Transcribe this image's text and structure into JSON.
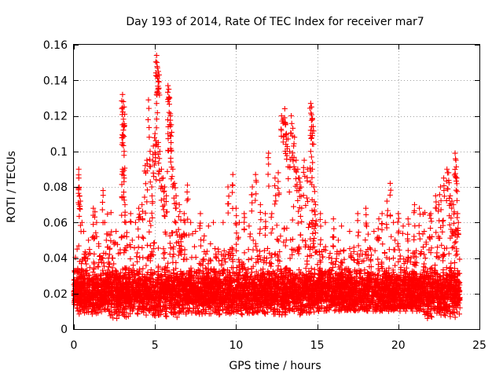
{
  "chart_data": {
    "type": "scatter",
    "title": "Day 193 of 2014, Rate Of TEC Index for receiver mar7",
    "xlabel": "GPS time / hours",
    "ylabel": "ROTI / TECUs",
    "xlim": [
      0,
      25
    ],
    "ylim": [
      0,
      0.16
    ],
    "xticks": [
      0,
      5,
      10,
      15,
      20,
      25
    ],
    "xtick_labels": [
      "0",
      "5",
      "10",
      "15",
      "20",
      "25"
    ],
    "yticks": [
      0,
      0.02,
      0.04,
      0.06,
      0.08,
      0.1,
      0.12,
      0.14,
      0.16
    ],
    "ytick_labels": [
      "0",
      "0.02",
      "0.04",
      "0.06",
      "0.08",
      "0.1",
      "0.12",
      "0.14",
      "0.16"
    ],
    "grid": true,
    "marker": "+",
    "color": "#ff0000",
    "series": [
      {
        "name": "ROTI",
        "points": [
          [
            0.1,
            0.018
          ],
          [
            0.2,
            0.045
          ],
          [
            0.3,
            0.09
          ],
          [
            0.3,
            0.085
          ],
          [
            0.35,
            0.075
          ],
          [
            0.4,
            0.072
          ],
          [
            0.5,
            0.06
          ],
          [
            0.6,
            0.055
          ],
          [
            0.7,
            0.04
          ],
          [
            0.8,
            0.03
          ],
          [
            0.9,
            0.05
          ],
          [
            1.0,
            0.025
          ],
          [
            1.2,
            0.068
          ],
          [
            1.3,
            0.066
          ],
          [
            1.4,
            0.06
          ],
          [
            1.5,
            0.035
          ],
          [
            1.8,
            0.078
          ],
          [
            1.9,
            0.06
          ],
          [
            2.0,
            0.05
          ],
          [
            2.2,
            0.045
          ],
          [
            2.4,
            0.04
          ],
          [
            2.6,
            0.055
          ],
          [
            3.0,
            0.132
          ],
          [
            3.05,
            0.128
          ],
          [
            3.1,
            0.125
          ],
          [
            3.0,
            0.115
          ],
          [
            3.05,
            0.112
          ],
          [
            3.1,
            0.1
          ],
          [
            3.0,
            0.09
          ],
          [
            3.1,
            0.085
          ],
          [
            3.15,
            0.07
          ],
          [
            3.2,
            0.06
          ],
          [
            3.5,
            0.065
          ],
          [
            3.6,
            0.05
          ],
          [
            3.8,
            0.06
          ],
          [
            4.0,
            0.068
          ],
          [
            4.2,
            0.07
          ],
          [
            4.4,
            0.092
          ],
          [
            4.5,
            0.095
          ],
          [
            4.6,
            0.129
          ],
          [
            4.7,
            0.1
          ],
          [
            4.8,
            0.08
          ],
          [
            4.9,
            0.103
          ],
          [
            5.0,
            0.11
          ],
          [
            5.05,
            0.106
          ],
          [
            5.1,
            0.154
          ],
          [
            5.12,
            0.15
          ],
          [
            5.15,
            0.147
          ],
          [
            5.2,
            0.145
          ],
          [
            5.25,
            0.143
          ],
          [
            5.1,
            0.127
          ],
          [
            5.2,
            0.105
          ],
          [
            5.3,
            0.1
          ],
          [
            5.4,
            0.09
          ],
          [
            5.5,
            0.085
          ],
          [
            5.6,
            0.08
          ],
          [
            5.7,
            0.075
          ],
          [
            5.8,
            0.137
          ],
          [
            5.85,
            0.135
          ],
          [
            5.9,
            0.13
          ],
          [
            5.95,
            0.12
          ],
          [
            6.0,
            0.115
          ],
          [
            5.8,
            0.11
          ],
          [
            6.0,
            0.1
          ],
          [
            6.1,
            0.09
          ],
          [
            6.2,
            0.082
          ],
          [
            6.3,
            0.075
          ],
          [
            6.5,
            0.07
          ],
          [
            6.8,
            0.065
          ],
          [
            7.0,
            0.081
          ],
          [
            7.2,
            0.06
          ],
          [
            7.5,
            0.055
          ],
          [
            7.8,
            0.065
          ],
          [
            8.0,
            0.05
          ],
          [
            8.3,
            0.058
          ],
          [
            8.6,
            0.06
          ],
          [
            8.9,
            0.045
          ],
          [
            9.2,
            0.06
          ],
          [
            9.5,
            0.08
          ],
          [
            9.8,
            0.087
          ],
          [
            10.0,
            0.068
          ],
          [
            10.2,
            0.06
          ],
          [
            10.5,
            0.065
          ],
          [
            10.8,
            0.058
          ],
          [
            11.0,
            0.08
          ],
          [
            11.2,
            0.087
          ],
          [
            11.5,
            0.07
          ],
          [
            11.8,
            0.065
          ],
          [
            12.0,
            0.099
          ],
          [
            12.2,
            0.065
          ],
          [
            12.4,
            0.085
          ],
          [
            12.6,
            0.088
          ],
          [
            12.8,
            0.12
          ],
          [
            12.9,
            0.118
          ],
          [
            13.0,
            0.124
          ],
          [
            13.05,
            0.115
          ],
          [
            13.1,
            0.11
          ],
          [
            13.2,
            0.107
          ],
          [
            13.3,
            0.1
          ],
          [
            13.4,
            0.12
          ],
          [
            13.5,
            0.113
          ],
          [
            13.6,
            0.108
          ],
          [
            13.7,
            0.095
          ],
          [
            13.8,
            0.09
          ],
          [
            13.9,
            0.085
          ],
          [
            14.0,
            0.08
          ],
          [
            14.2,
            0.095
          ],
          [
            14.4,
            0.09
          ],
          [
            14.6,
            0.127
          ],
          [
            14.65,
            0.125
          ],
          [
            14.7,
            0.118
          ],
          [
            14.75,
            0.114
          ],
          [
            14.6,
            0.1
          ],
          [
            14.7,
            0.09
          ],
          [
            14.8,
            0.08
          ],
          [
            14.9,
            0.07
          ],
          [
            15.2,
            0.065
          ],
          [
            15.5,
            0.06
          ],
          [
            16.0,
            0.062
          ],
          [
            16.3,
            0.05
          ],
          [
            16.5,
            0.058
          ],
          [
            17.0,
            0.055
          ],
          [
            17.5,
            0.065
          ],
          [
            18.0,
            0.068
          ],
          [
            18.5,
            0.055
          ],
          [
            18.8,
            0.062
          ],
          [
            19.0,
            0.065
          ],
          [
            19.3,
            0.072
          ],
          [
            19.5,
            0.082
          ],
          [
            19.7,
            0.06
          ],
          [
            20.0,
            0.065
          ],
          [
            20.3,
            0.058
          ],
          [
            20.6,
            0.062
          ],
          [
            21.0,
            0.07
          ],
          [
            21.3,
            0.068
          ],
          [
            21.6,
            0.055
          ],
          [
            22.0,
            0.065
          ],
          [
            22.3,
            0.075
          ],
          [
            22.5,
            0.07
          ],
          [
            22.6,
            0.08
          ],
          [
            22.8,
            0.085
          ],
          [
            23.0,
            0.09
          ],
          [
            23.1,
            0.088
          ],
          [
            23.2,
            0.075
          ],
          [
            23.3,
            0.072
          ],
          [
            23.4,
            0.07
          ],
          [
            23.5,
            0.099
          ],
          [
            23.55,
            0.095
          ],
          [
            23.6,
            0.085
          ],
          [
            23.65,
            0.065
          ],
          [
            23.7,
            0.06
          ]
        ]
      }
    ],
    "density_bands": [
      {
        "x_start": 0.0,
        "x_end": 2.0,
        "y_low": 0.008,
        "y_high": 0.045
      },
      {
        "x_start": 2.0,
        "x_end": 7.0,
        "y_low": 0.006,
        "y_high": 0.055
      },
      {
        "x_start": 7.0,
        "x_end": 12.5,
        "y_low": 0.008,
        "y_high": 0.045
      },
      {
        "x_start": 12.5,
        "x_end": 15.0,
        "y_low": 0.008,
        "y_high": 0.06
      },
      {
        "x_start": 15.0,
        "x_end": 21.5,
        "y_low": 0.01,
        "y_high": 0.045
      },
      {
        "x_start": 21.5,
        "x_end": 23.8,
        "y_low": 0.006,
        "y_high": 0.055
      }
    ]
  }
}
